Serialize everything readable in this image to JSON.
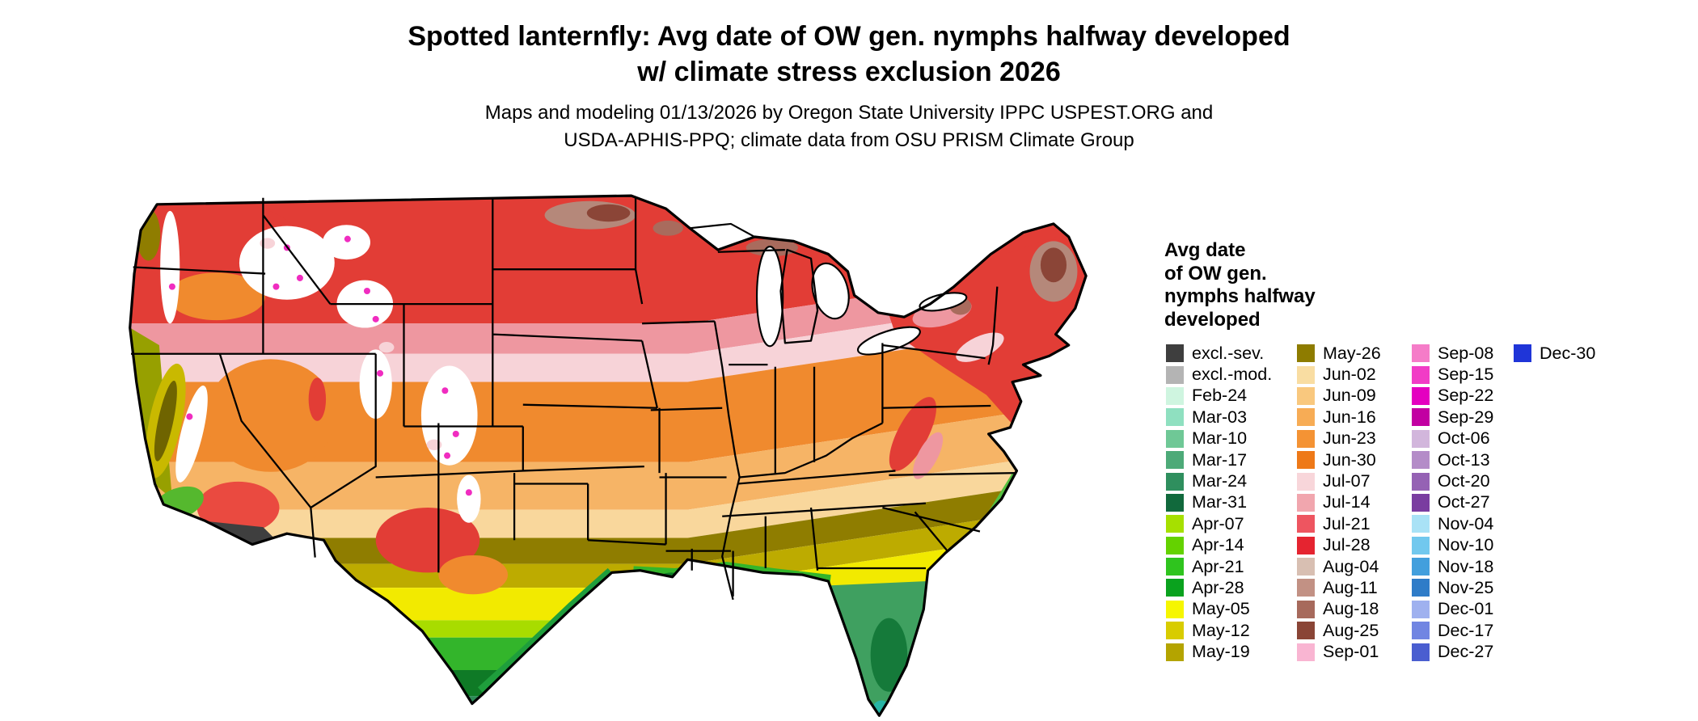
{
  "title": {
    "line1": "Spotted lanternfly: Avg date of OW gen. nymphs halfway developed",
    "line2": "w/ climate stress exclusion 2026"
  },
  "subtitle": {
    "line1": "Maps and modeling 01/13/2026 by Oregon State University IPPC USPEST.ORG and",
    "line2": "USDA-APHIS-PPQ; climate data from OSU PRISM Climate Group"
  },
  "legend": {
    "title_lines": [
      "Avg date",
      "of OW gen.",
      "nymphs halfway",
      "developed"
    ],
    "columns": [
      {
        "items": [
          {
            "label": "excl.-sev.",
            "color": "#3e3e3e"
          },
          {
            "label": "excl.-mod.",
            "color": "#b4b4b4"
          },
          {
            "label": "Feb-24",
            "color": "#cff5e0"
          },
          {
            "label": "Mar-03",
            "color": "#8fe0c0"
          },
          {
            "label": "Mar-10",
            "color": "#6fc896"
          },
          {
            "label": "Mar-17",
            "color": "#4daa78"
          },
          {
            "label": "Mar-24",
            "color": "#2f8f5e"
          },
          {
            "label": "Mar-31",
            "color": "#11693c"
          },
          {
            "label": "Apr-07",
            "color": "#a6e000"
          },
          {
            "label": "Apr-14",
            "color": "#64d200"
          },
          {
            "label": "Apr-21",
            "color": "#2fc41e"
          },
          {
            "label": "Apr-28",
            "color": "#0aa21e"
          },
          {
            "label": "May-05",
            "color": "#f6f600"
          },
          {
            "label": "May-12",
            "color": "#d8cc00"
          },
          {
            "label": "May-19",
            "color": "#b4a400"
          }
        ]
      },
      {
        "items": [
          {
            "label": "May-26",
            "color": "#8e7c00"
          },
          {
            "label": "Jun-02",
            "color": "#f9dda2"
          },
          {
            "label": "Jun-09",
            "color": "#f9c87e"
          },
          {
            "label": "Jun-16",
            "color": "#f7ac55"
          },
          {
            "label": "Jun-23",
            "color": "#f49334"
          },
          {
            "label": "Jun-30",
            "color": "#ee7918"
          },
          {
            "label": "Jul-07",
            "color": "#f8d6da"
          },
          {
            "label": "Jul-14",
            "color": "#f1a6ae"
          },
          {
            "label": "Jul-21",
            "color": "#ee5560"
          },
          {
            "label": "Jul-28",
            "color": "#e52430"
          },
          {
            "label": "Aug-04",
            "color": "#d8bfb2"
          },
          {
            "label": "Aug-11",
            "color": "#c29184"
          },
          {
            "label": "Aug-18",
            "color": "#a76a5c"
          },
          {
            "label": "Aug-25",
            "color": "#8a4536"
          },
          {
            "label": "Sep-01",
            "color": "#f9b5d2"
          }
        ]
      },
      {
        "items": [
          {
            "label": "Sep-08",
            "color": "#f57cc8"
          },
          {
            "label": "Sep-15",
            "color": "#f13cc6"
          },
          {
            "label": "Sep-22",
            "color": "#e400c0"
          },
          {
            "label": "Sep-29",
            "color": "#c200a2"
          },
          {
            "label": "Oct-06",
            "color": "#d2b6dc"
          },
          {
            "label": "Oct-13",
            "color": "#b48cc8"
          },
          {
            "label": "Oct-20",
            "color": "#9562b4"
          },
          {
            "label": "Oct-27",
            "color": "#7a3da0"
          },
          {
            "label": "Nov-04",
            "color": "#a9e2f6"
          },
          {
            "label": "Nov-10",
            "color": "#71c8ee"
          },
          {
            "label": "Nov-18",
            "color": "#429fdd"
          },
          {
            "label": "Nov-25",
            "color": "#2f7cc8"
          },
          {
            "label": "Dec-01",
            "color": "#9fb1ef"
          },
          {
            "label": "Dec-17",
            "color": "#7185e2"
          },
          {
            "label": "Dec-27",
            "color": "#4a5ed0"
          }
        ]
      },
      {
        "items": [
          {
            "label": "Dec-30",
            "color": "#1f35d8"
          }
        ]
      }
    ]
  }
}
